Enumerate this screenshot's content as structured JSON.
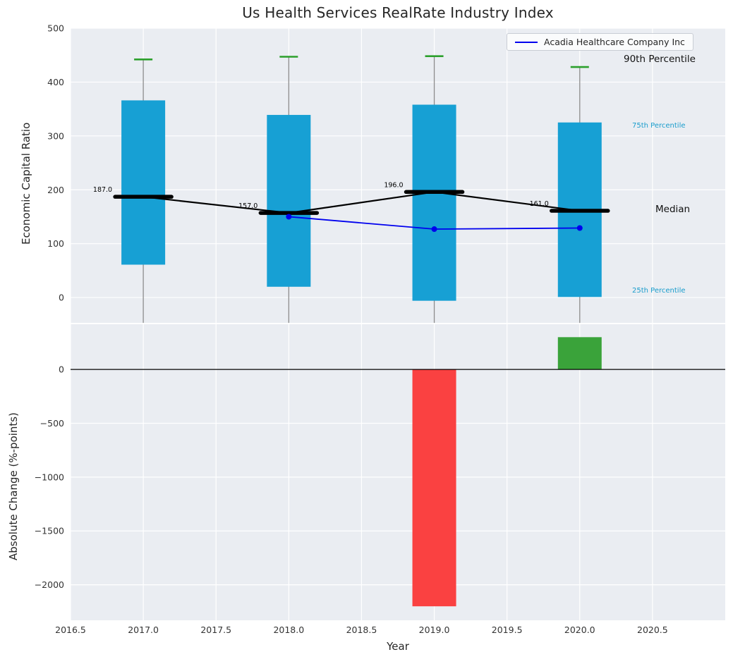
{
  "chart_data": {
    "type": "box-and-bar-combo",
    "title": "Us Health Services RealRate Industry Index",
    "xlim": [
      2016.5,
      2021.0
    ],
    "xtick_values": [
      2016.5,
      2017.0,
      2017.5,
      2018.0,
      2018.5,
      2019.0,
      2019.5,
      2020.0,
      2020.5
    ],
    "xtick_labels": [
      "2016.5",
      "2017.0",
      "2017.5",
      "2018.0",
      "2018.5",
      "2019.0",
      "2019.5",
      "2020.0",
      "2020.5"
    ],
    "top_panel": {
      "ylabel": "Economic Capital Ratio",
      "ylim": [
        -47,
        500
      ],
      "ytick_values": [
        0,
        100,
        200,
        300,
        400,
        500
      ],
      "ytick_labels": [
        "0",
        "100",
        "200",
        "300",
        "400",
        "500"
      ],
      "grid": true,
      "boxes": [
        {
          "year": 2017,
          "p25": 61,
          "p75": 366,
          "median": 187.0,
          "p90": 442,
          "median_label": "187.0"
        },
        {
          "year": 2018,
          "p25": 20,
          "p75": 339,
          "median": 157.0,
          "p90": 447,
          "median_label": "157.0"
        },
        {
          "year": 2019,
          "p25": -6,
          "p75": 358,
          "median": 196.0,
          "p90": 448,
          "median_label": "196.0"
        },
        {
          "year": 2020,
          "p25": 1,
          "p75": 325,
          "median": 161.0,
          "p90": 428,
          "median_label": "161.0"
        }
      ],
      "series": {
        "name": "Acadia Healthcare Company Inc",
        "x": [
          2018,
          2019,
          2020
        ],
        "y": [
          150,
          127,
          129
        ]
      },
      "annotations": {
        "p90": "90th Percentile",
        "p75": "75th Percentile",
        "median": "Median",
        "p25": "25th Percentile"
      },
      "legend_position": "upper right"
    },
    "bottom_panel": {
      "ylabel": "Absolute Change (%-points)",
      "xlabel": "Year",
      "ylim": [
        -2330,
        420
      ],
      "ytick_values": [
        0,
        -500,
        -1000,
        -1500,
        -2000
      ],
      "ytick_labels": [
        "0",
        "−500",
        "−1000",
        "−1500",
        "−2000"
      ],
      "grid": true,
      "bars": [
        {
          "year": 2019,
          "value": -2200,
          "direction": "negative"
        },
        {
          "year": 2020,
          "value": 300,
          "direction": "positive"
        }
      ]
    },
    "colors": {
      "box_fill": "#17a0d4",
      "median_line": "#000000",
      "series_line": "#0000ee",
      "p90_cap": "#2ca02c",
      "whisker": "#8c8c8c",
      "bar_negative": "#fa4141",
      "bar_positive": "#3aa33a",
      "plot_background": "#eaedf2",
      "grid": "#ffffff",
      "tick_text": "#333333",
      "percentile_text": "#189ccc",
      "zero_line": "#000000"
    }
  }
}
